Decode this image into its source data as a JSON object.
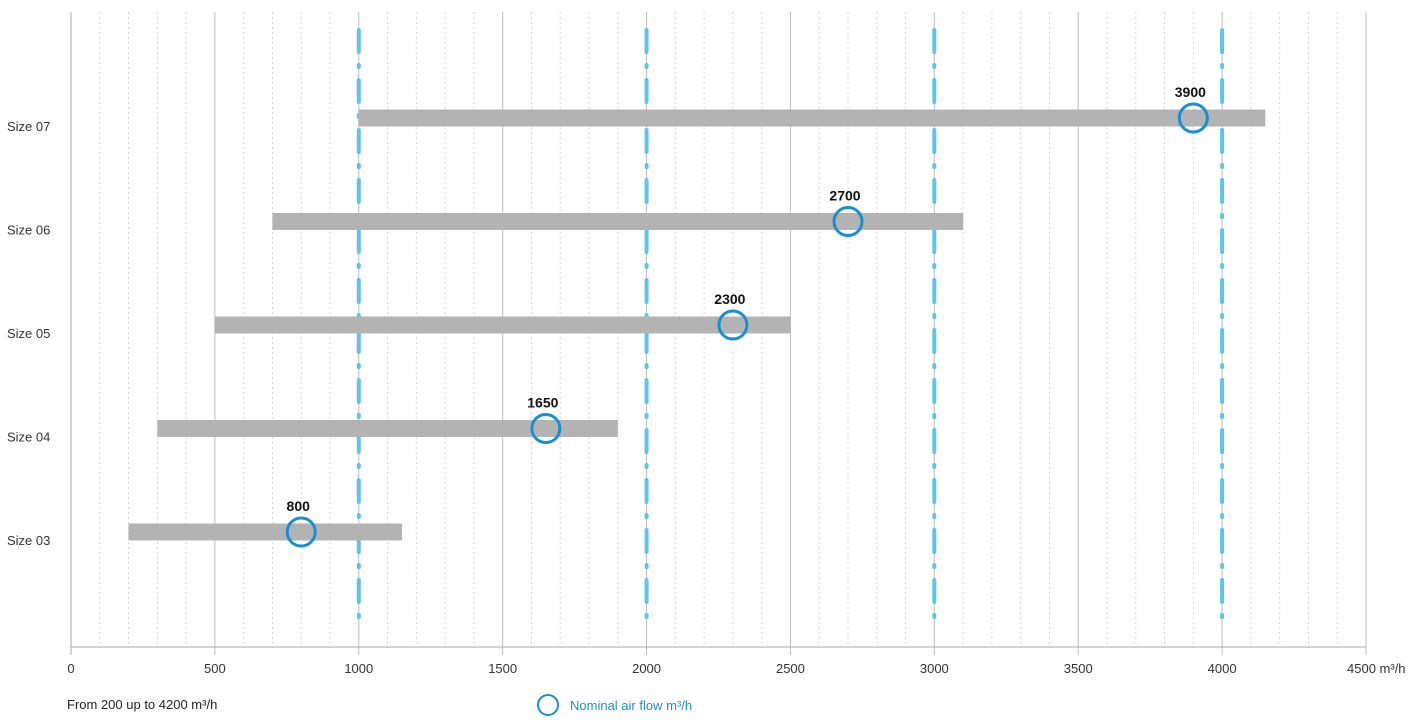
{
  "chart_data": {
    "type": "bar",
    "orientation": "horizontal-range",
    "categories": [
      "Size 07",
      "Size 06",
      "Size 05",
      "Size 04",
      "Size 03"
    ],
    "ranges": [
      {
        "category": "Size 07",
        "min": 1000,
        "max": 4150,
        "nominal": 3900,
        "nominal_label": "3900"
      },
      {
        "category": "Size 06",
        "min": 700,
        "max": 3100,
        "nominal": 2700,
        "nominal_label": "2700"
      },
      {
        "category": "Size 05",
        "min": 500,
        "max": 2500,
        "nominal": 2300,
        "nominal_label": "2300"
      },
      {
        "category": "Size 04",
        "min": 300,
        "max": 1900,
        "nominal": 1650,
        "nominal_label": "1650"
      },
      {
        "category": "Size 03",
        "min": 200,
        "max": 1150,
        "nominal": 800,
        "nominal_label": "800"
      }
    ],
    "x_ticks": [
      {
        "value": 0,
        "label": "0"
      },
      {
        "value": 500,
        "label": "500"
      },
      {
        "value": 1000,
        "label": "1000"
      },
      {
        "value": 1500,
        "label": "1500"
      },
      {
        "value": 2000,
        "label": "2000"
      },
      {
        "value": 2500,
        "label": "2500"
      },
      {
        "value": 3000,
        "label": "3000"
      },
      {
        "value": 3500,
        "label": "3500"
      },
      {
        "value": 4000,
        "label": "4000"
      },
      {
        "value": 4500,
        "label": "4500 m³/h"
      }
    ],
    "minor_tick_step": 100,
    "xlim": [
      0,
      4500
    ],
    "highlight_lines": [
      1000,
      2000,
      3000,
      4000
    ],
    "footer_note": "From 200 up to 4200 m³/h",
    "legend": {
      "label": "Nominal air flow m³/h",
      "placement": "bottom-center"
    },
    "colors": {
      "bar": "#b3b3b3",
      "nominal_marker": "#1a8fd0",
      "highlight_line": "#5bc4ef",
      "major_grid": "#bdbdbd",
      "minor_grid": "#d6d6d6",
      "axis": "#aaaaaa"
    }
  }
}
